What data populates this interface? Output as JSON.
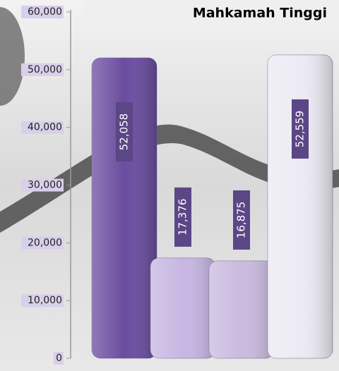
{
  "chart_data": {
    "type": "bar",
    "title": "Mahkamah Tinggi",
    "categories": [
      null,
      null,
      null,
      null
    ],
    "values": [
      52058,
      17376,
      16875,
      52559
    ],
    "value_labels": [
      "52,058",
      "17,376",
      "16,875",
      "52,559"
    ],
    "colors": [
      "#6a4d9f",
      "#c7b6e2",
      "#c9badf",
      "#eceaf4"
    ],
    "ylim": [
      0,
      60000
    ],
    "yticks": [
      0,
      {
        "value": 10000,
        "label": "10,000"
      },
      {
        "value": 20000,
        "label": "20,000"
      },
      {
        "value": 30000,
        "label": "30,000"
      },
      {
        "value": 40000,
        "label": "40,000"
      },
      {
        "value": 50000,
        "label": "50,000"
      },
      {
        "value": 60000,
        "label": "60,000"
      }
    ],
    "grid": false
  }
}
